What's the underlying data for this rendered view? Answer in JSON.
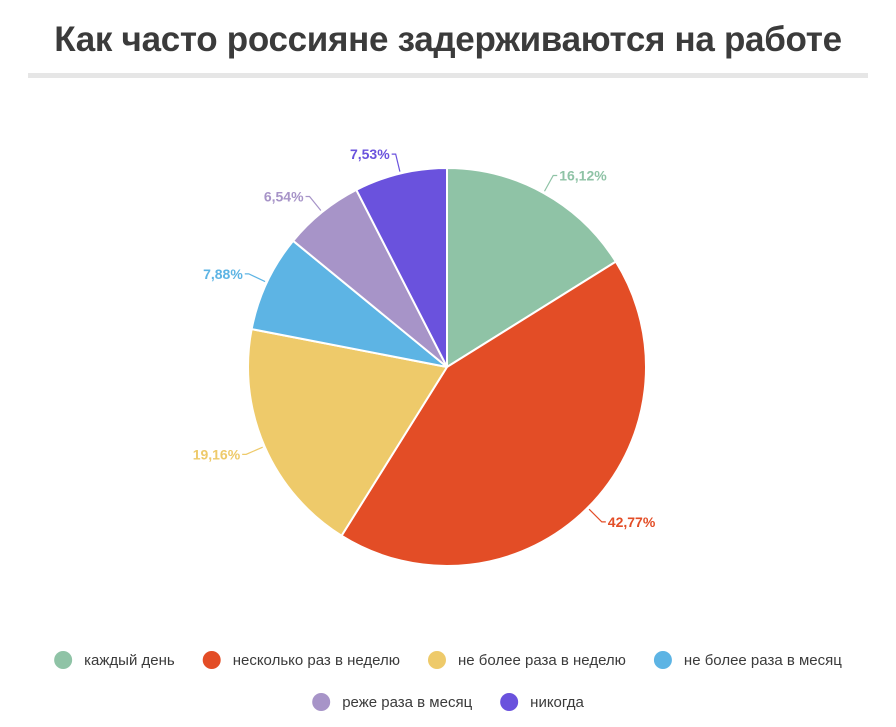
{
  "chart_data": {
    "type": "pie",
    "title": "Как часто россияне задерживаются на работе",
    "categories": [
      "каждый день",
      "несколько раз в неделю",
      "не более раза в неделю",
      "не более раза в месяц",
      "реже раза в месяц",
      "никогда"
    ],
    "values": [
      16.12,
      42.77,
      19.16,
      7.88,
      6.54,
      7.53
    ],
    "value_labels": [
      "16,12%",
      "42,77%",
      "19,16%",
      "7,88%",
      "6,54%",
      "7,53%"
    ],
    "colors": [
      "#8fc3a6",
      "#e34d26",
      "#eeca6a",
      "#5db4e4",
      "#a794c8",
      "#6a52dd"
    ],
    "legend_position": "bottom",
    "start_angle": "12 o'clock",
    "direction": "clockwise"
  }
}
